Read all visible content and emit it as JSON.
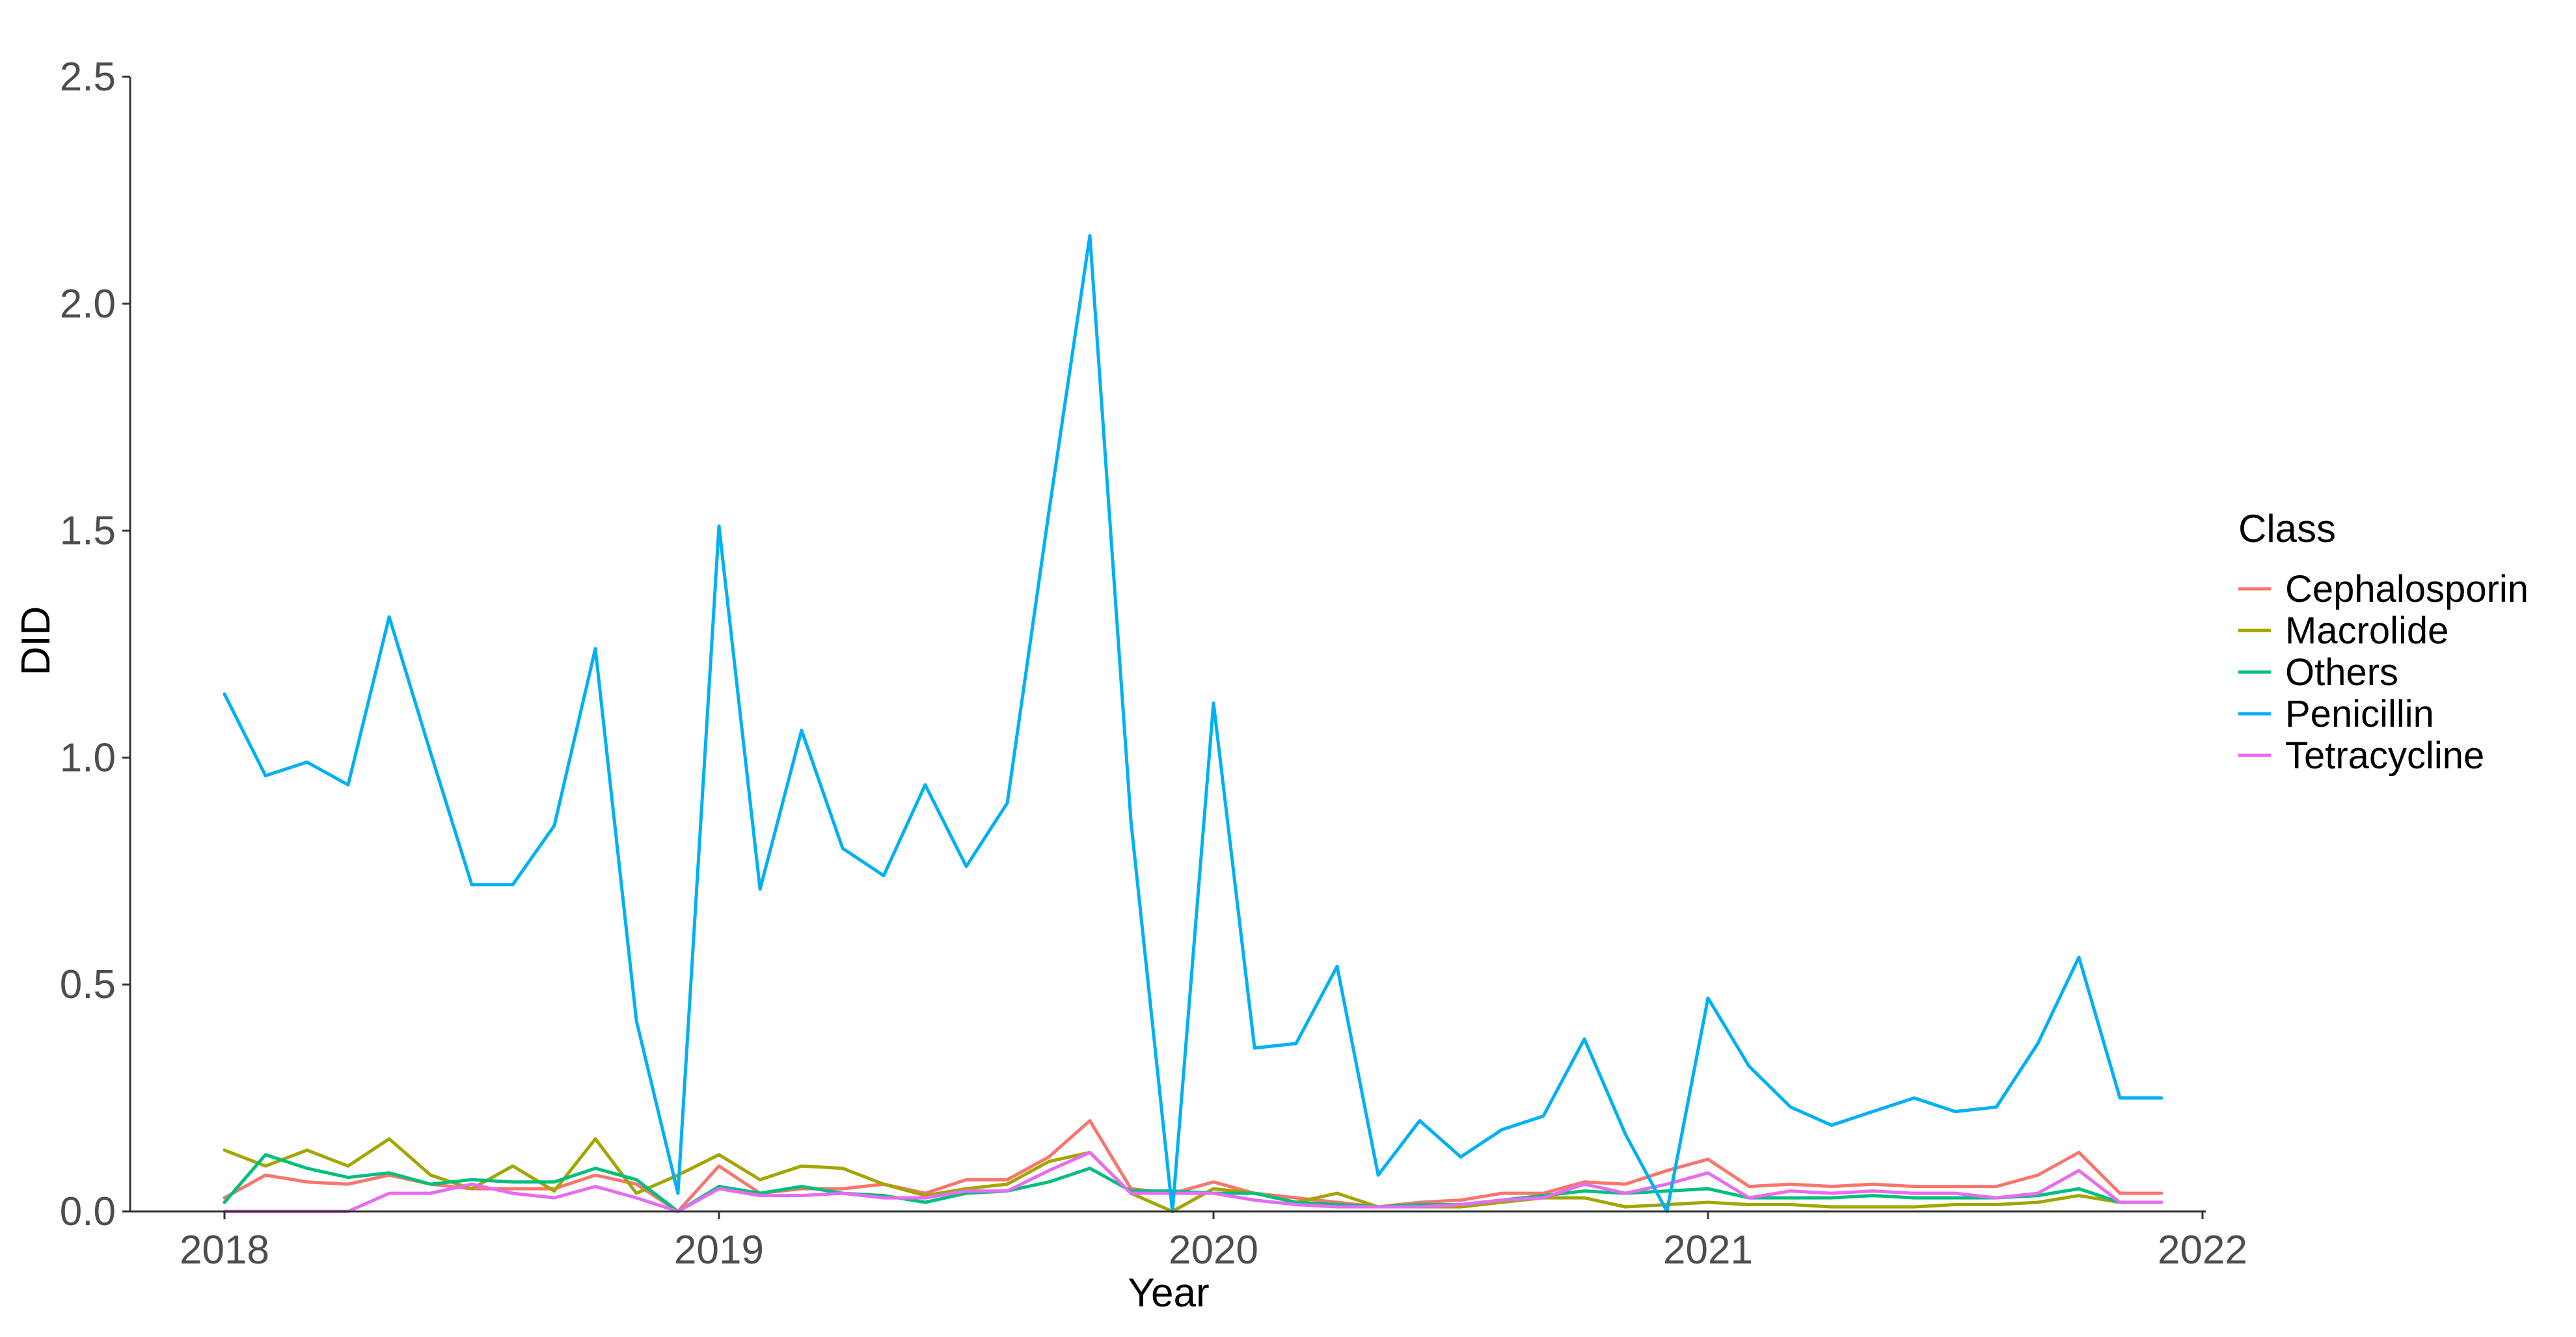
{
  "chart_data": {
    "type": "line",
    "xlabel": "Year",
    "ylabel": "DID",
    "xlim": [
      2017.8,
      2022.0
    ],
    "ylim": [
      0,
      2.5
    ],
    "x_ticks": [
      {
        "value": 2018,
        "label": "2018"
      },
      {
        "value": 2019,
        "label": "2019"
      },
      {
        "value": 2020,
        "label": "2020"
      },
      {
        "value": 2021,
        "label": "2021"
      },
      {
        "value": 2022,
        "label": "2022"
      }
    ],
    "y_ticks": [
      {
        "value": 0.0,
        "label": "0.0"
      },
      {
        "value": 0.5,
        "label": "0.5"
      },
      {
        "value": 1.0,
        "label": "1.0"
      },
      {
        "value": 1.5,
        "label": "1.5"
      },
      {
        "value": 2.0,
        "label": "2.0"
      },
      {
        "value": 2.5,
        "label": "2.5"
      }
    ],
    "grid": false,
    "legend": {
      "title": "Class",
      "placement": "right"
    },
    "x": [
      2018.0,
      2018.083,
      2018.167,
      2018.25,
      2018.333,
      2018.417,
      2018.5,
      2018.583,
      2018.667,
      2018.75,
      2018.833,
      2018.917,
      2019.0,
      2019.083,
      2019.167,
      2019.25,
      2019.333,
      2019.417,
      2019.5,
      2019.583,
      2019.667,
      2019.75,
      2019.833,
      2019.917,
      2020.0,
      2020.083,
      2020.167,
      2020.25,
      2020.333,
      2020.417,
      2020.5,
      2020.583,
      2020.667,
      2020.75,
      2020.833,
      2020.917,
      2021.0,
      2021.083,
      2021.167,
      2021.25,
      2021.333,
      2021.417,
      2021.5,
      2021.583,
      2021.667,
      2021.75,
      2021.833,
      2021.917
    ],
    "series": [
      {
        "name": "Cephalosporin",
        "color": "#F8766D",
        "values": [
          0.03,
          0.08,
          0.065,
          0.06,
          0.08,
          0.06,
          0.05,
          0.05,
          0.05,
          0.08,
          0.06,
          0.0,
          0.1,
          0.04,
          0.05,
          0.05,
          0.06,
          0.04,
          0.07,
          0.07,
          0.12,
          0.2,
          0.05,
          0.04,
          0.065,
          0.04,
          0.03,
          0.02,
          0.01,
          0.02,
          0.025,
          0.04,
          0.04,
          0.065,
          0.06,
          0.09,
          0.115,
          0.055,
          0.06,
          0.055,
          0.06,
          0.055,
          0.055,
          0.055,
          0.08,
          0.13,
          0.04,
          0.04
        ]
      },
      {
        "name": "Macrolide",
        "color": "#A3A500",
        "values": [
          0.135,
          0.1,
          0.135,
          0.1,
          0.16,
          0.08,
          0.05,
          0.1,
          0.045,
          0.16,
          0.04,
          0.08,
          0.125,
          0.07,
          0.1,
          0.095,
          0.06,
          0.035,
          0.05,
          0.06,
          0.11,
          0.13,
          0.04,
          0.0,
          0.05,
          0.04,
          0.02,
          0.04,
          0.01,
          0.01,
          0.01,
          0.02,
          0.03,
          0.03,
          0.01,
          0.015,
          0.02,
          0.015,
          0.015,
          0.01,
          0.01,
          0.01,
          0.015,
          0.015,
          0.02,
          0.035,
          0.02,
          0.02
        ]
      },
      {
        "name": "Others",
        "color": "#00BF7D",
        "values": [
          0.02,
          0.125,
          0.095,
          0.075,
          0.085,
          0.06,
          0.07,
          0.065,
          0.065,
          0.095,
          0.07,
          0.0,
          0.055,
          0.04,
          0.055,
          0.04,
          0.035,
          0.02,
          0.04,
          0.045,
          0.065,
          0.095,
          0.045,
          0.045,
          0.04,
          0.04,
          0.02,
          0.015,
          0.01,
          0.015,
          0.015,
          0.025,
          0.035,
          0.045,
          0.04,
          0.045,
          0.05,
          0.03,
          0.03,
          0.03,
          0.035,
          0.03,
          0.03,
          0.03,
          0.035,
          0.05,
          0.02,
          0.02
        ]
      },
      {
        "name": "Penicillin",
        "color": "#00B0F6",
        "values": [
          1.14,
          0.96,
          0.99,
          0.94,
          1.31,
          1.01,
          0.72,
          0.72,
          0.85,
          1.24,
          0.42,
          0.04,
          1.51,
          0.71,
          1.06,
          0.8,
          0.74,
          0.94,
          0.76,
          0.9,
          1.54,
          2.15,
          0.86,
          0.0,
          1.12,
          0.36,
          0.37,
          0.54,
          0.08,
          0.2,
          0.12,
          0.18,
          0.21,
          0.38,
          0.17,
          0.0,
          0.47,
          0.32,
          0.23,
          0.19,
          0.22,
          0.25,
          0.22,
          0.23,
          0.37,
          0.56,
          0.25,
          0.25
        ]
      },
      {
        "name": "Tetracycline",
        "color": "#E76BF3",
        "values": [
          0.0,
          0.0,
          0.0,
          0.0,
          0.04,
          0.04,
          0.06,
          0.04,
          0.03,
          0.055,
          0.03,
          0.0,
          0.05,
          0.035,
          0.035,
          0.04,
          0.03,
          0.03,
          0.045,
          0.045,
          0.09,
          0.13,
          0.04,
          0.04,
          0.04,
          0.025,
          0.015,
          0.01,
          0.01,
          0.01,
          0.015,
          0.025,
          0.03,
          0.06,
          0.04,
          0.06,
          0.085,
          0.03,
          0.045,
          0.04,
          0.045,
          0.04,
          0.04,
          0.03,
          0.04,
          0.09,
          0.02,
          0.02
        ]
      }
    ]
  }
}
